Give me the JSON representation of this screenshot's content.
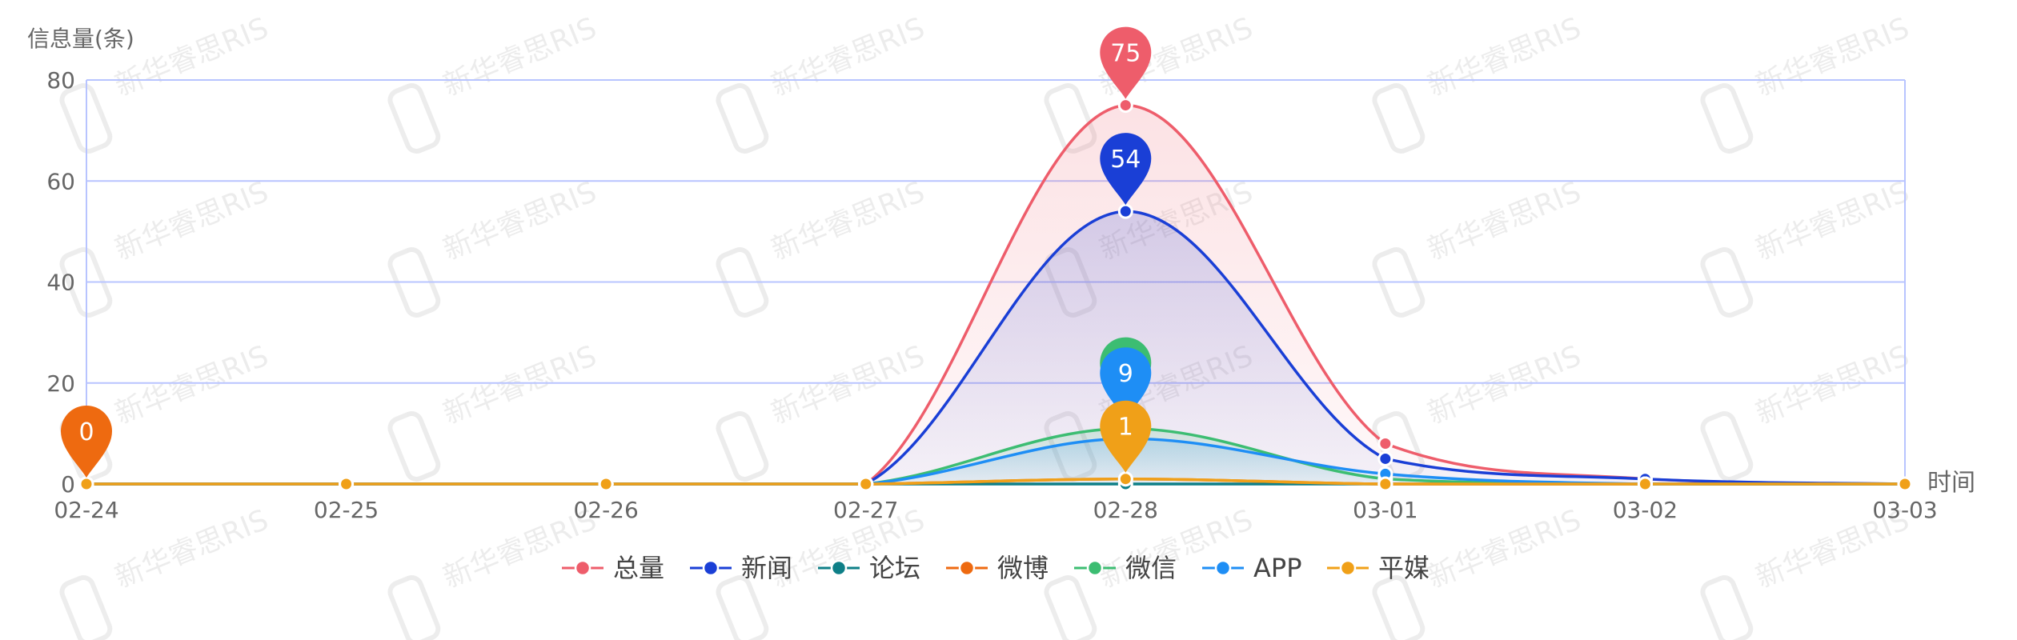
{
  "watermark": {
    "text": "新华睿思RIS"
  },
  "chart_data": {
    "type": "line",
    "ylabel": "信息量(条)",
    "xlabel": "时间",
    "ylim": [
      0,
      80
    ],
    "yticks": [
      0,
      20,
      40,
      60,
      80
    ],
    "categories": [
      "02-24",
      "02-25",
      "02-26",
      "02-27",
      "02-28",
      "03-01",
      "03-02",
      "03-03"
    ],
    "grid": true,
    "legend_position": "bottom",
    "series": [
      {
        "name": "总量",
        "color": "#ee5d6b",
        "values": [
          0,
          0,
          0,
          0,
          75,
          8,
          1,
          0
        ],
        "area": true,
        "marker": {
          "index": 4,
          "label": "75"
        }
      },
      {
        "name": "新闻",
        "color": "#1a3fd6",
        "values": [
          0,
          0,
          0,
          0,
          54,
          5,
          1,
          0
        ],
        "area": true,
        "marker": {
          "index": 4,
          "label": "54"
        }
      },
      {
        "name": "论坛",
        "color": "#0e7f87",
        "values": [
          0,
          0,
          0,
          0,
          0,
          0,
          0,
          0
        ],
        "area": false,
        "marker": null
      },
      {
        "name": "微博",
        "color": "#ee6a10",
        "values": [
          0,
          0,
          0,
          0,
          1,
          0,
          0,
          0
        ],
        "area": false,
        "marker": {
          "index": 0,
          "label": "0"
        }
      },
      {
        "name": "微信",
        "color": "#3cbd72",
        "values": [
          0,
          0,
          0,
          0,
          11,
          1,
          0,
          0
        ],
        "area": true,
        "marker": {
          "index": 4,
          "label": ""
        }
      },
      {
        "name": "APP",
        "color": "#1e8ef5",
        "values": [
          0,
          0,
          0,
          0,
          9,
          2,
          0,
          0
        ],
        "area": true,
        "marker": {
          "index": 4,
          "label": "9"
        }
      },
      {
        "name": "平媒",
        "color": "#f0a018",
        "values": [
          0,
          0,
          0,
          0,
          1,
          0,
          0,
          0
        ],
        "area": false,
        "marker": {
          "index": 4,
          "label": "1"
        }
      }
    ]
  }
}
